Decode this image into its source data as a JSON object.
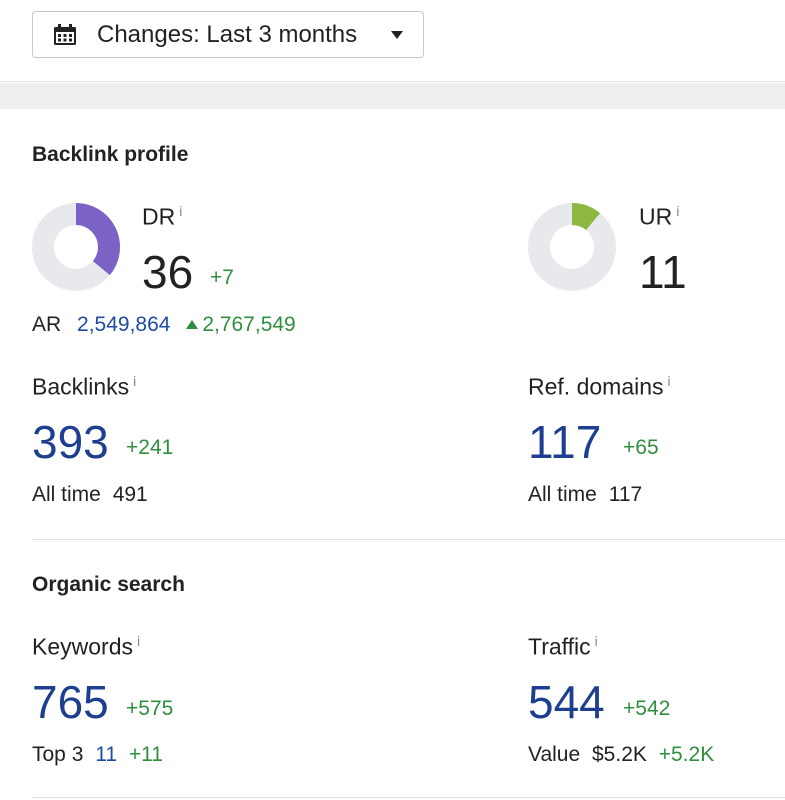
{
  "toolbar": {
    "changes_label": "Changes: Last 3 months"
  },
  "backlink_profile": {
    "title": "Backlink profile",
    "dr": {
      "label": "DR",
      "info": "i",
      "value": "36",
      "delta": "+7",
      "fraction": 0.36,
      "color": "#7b63c5"
    },
    "ur": {
      "label": "UR",
      "info": "i",
      "value": "11",
      "fraction": 0.11,
      "color": "#8cb842"
    },
    "ar": {
      "label": "AR",
      "value": "2,549,864",
      "delta": "2,767,549"
    },
    "backlinks": {
      "label": "Backlinks",
      "info": "i",
      "value": "393",
      "delta": "+241",
      "alltime_label": "All time",
      "alltime_value": "491"
    },
    "ref_domains": {
      "label": "Ref. domains",
      "info": "i",
      "value": "117",
      "delta": "+65",
      "alltime_label": "All time",
      "alltime_value": "117"
    }
  },
  "organic_search": {
    "title": "Organic search",
    "keywords": {
      "label": "Keywords",
      "info": "i",
      "value": "765",
      "delta": "+575",
      "top_label": "Top 3",
      "top_value": "11",
      "top_delta": "+11"
    },
    "traffic": {
      "label": "Traffic",
      "info": "i",
      "value": "544",
      "delta": "+542",
      "value_label": "Value",
      "value_amount": "$5.2K",
      "value_delta": "+5.2K"
    }
  },
  "colors": {
    "donut_track": "#e8e9ec",
    "blue": "#1e3f8f",
    "green": "#2f8f3e"
  }
}
